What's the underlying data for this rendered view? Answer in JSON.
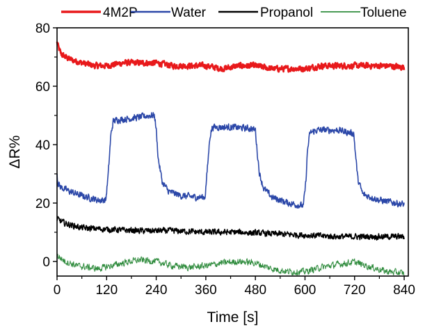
{
  "chart_data": {
    "type": "line",
    "title": "",
    "xlabel": "Time [s]",
    "ylabel": "ΔR%",
    "xlim": [
      0,
      850
    ],
    "ylim": [
      -5,
      80
    ],
    "xticks": [
      0,
      120,
      240,
      360,
      480,
      600,
      720,
      840
    ],
    "yticks": [
      0,
      20,
      40,
      60,
      80
    ],
    "legend_position": "top",
    "series": [
      {
        "name": "4M2P",
        "color": "#e8191b",
        "stroke_weight": "thick",
        "noise": 0.9,
        "points": [
          [
            0,
            75
          ],
          [
            4,
            73
          ],
          [
            10,
            71
          ],
          [
            20,
            70
          ],
          [
            35,
            69
          ],
          [
            60,
            68
          ],
          [
            90,
            67
          ],
          [
            120,
            67
          ],
          [
            160,
            68
          ],
          [
            200,
            68
          ],
          [
            240,
            68
          ],
          [
            280,
            67
          ],
          [
            320,
            67
          ],
          [
            360,
            67
          ],
          [
            400,
            66
          ],
          [
            440,
            67
          ],
          [
            480,
            67
          ],
          [
            520,
            66
          ],
          [
            560,
            66
          ],
          [
            600,
            66
          ],
          [
            640,
            67
          ],
          [
            680,
            67
          ],
          [
            720,
            67
          ],
          [
            760,
            67
          ],
          [
            800,
            67
          ],
          [
            840,
            66.5
          ]
        ]
      },
      {
        "name": "Water",
        "color": "#2b47a8",
        "stroke_weight": "normal",
        "noise": 1.0,
        "points": [
          [
            0,
            30
          ],
          [
            2,
            27
          ],
          [
            8,
            25.5
          ],
          [
            30,
            24
          ],
          [
            60,
            22.5
          ],
          [
            100,
            21
          ],
          [
            118,
            21
          ],
          [
            124,
            30
          ],
          [
            130,
            43
          ],
          [
            136,
            48
          ],
          [
            145,
            48.5
          ],
          [
            180,
            49
          ],
          [
            225,
            50
          ],
          [
            236,
            50
          ],
          [
            240,
            45
          ],
          [
            245,
            35
          ],
          [
            255,
            27
          ],
          [
            270,
            24
          ],
          [
            300,
            22.5
          ],
          [
            340,
            22
          ],
          [
            358,
            22
          ],
          [
            364,
            32
          ],
          [
            370,
            43
          ],
          [
            376,
            46
          ],
          [
            420,
            46
          ],
          [
            470,
            45.5
          ],
          [
            480,
            45
          ],
          [
            484,
            38
          ],
          [
            490,
            30
          ],
          [
            500,
            25
          ],
          [
            520,
            22
          ],
          [
            560,
            20
          ],
          [
            596,
            19
          ],
          [
            602,
            27
          ],
          [
            606,
            38
          ],
          [
            612,
            44
          ],
          [
            630,
            45
          ],
          [
            680,
            45
          ],
          [
            710,
            44
          ],
          [
            718,
            44
          ],
          [
            722,
            37
          ],
          [
            728,
            28
          ],
          [
            740,
            23
          ],
          [
            780,
            21
          ],
          [
            820,
            20
          ],
          [
            840,
            19.5
          ]
        ]
      },
      {
        "name": "Propanol",
        "color": "#000000",
        "stroke_weight": "normal",
        "noise": 0.9,
        "points": [
          [
            0,
            14.5
          ],
          [
            20,
            13
          ],
          [
            60,
            11.5
          ],
          [
            120,
            11
          ],
          [
            200,
            10.5
          ],
          [
            280,
            10.5
          ],
          [
            360,
            10
          ],
          [
            440,
            10
          ],
          [
            520,
            9.5
          ],
          [
            600,
            9
          ],
          [
            680,
            8.5
          ],
          [
            760,
            8.5
          ],
          [
            840,
            8.5
          ]
        ]
      },
      {
        "name": "Toluene",
        "color": "#2e8b3c",
        "stroke_weight": "thin",
        "noise": 1.0,
        "points": [
          [
            0,
            2
          ],
          [
            20,
            0
          ],
          [
            50,
            -1.5
          ],
          [
            100,
            -2.5
          ],
          [
            130,
            -1.5
          ],
          [
            170,
            -0.2
          ],
          [
            200,
            0.5
          ],
          [
            240,
            0
          ],
          [
            280,
            -1.5
          ],
          [
            320,
            -2
          ],
          [
            360,
            -1.5
          ],
          [
            400,
            -0.5
          ],
          [
            440,
            0
          ],
          [
            480,
            -0.5
          ],
          [
            520,
            -2.5
          ],
          [
            560,
            -3.5
          ],
          [
            600,
            -3.5
          ],
          [
            640,
            -2
          ],
          [
            680,
            -1
          ],
          [
            720,
            -0.2
          ],
          [
            760,
            -2
          ],
          [
            800,
            -3.5
          ],
          [
            840,
            -4
          ]
        ]
      }
    ]
  }
}
